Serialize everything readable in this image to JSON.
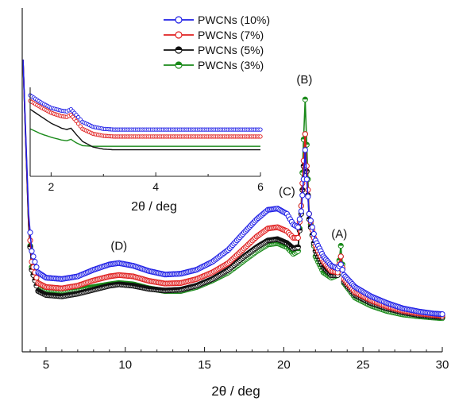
{
  "chart_data": {
    "type": "line",
    "title": "",
    "xlabel": "2θ / deg",
    "ylabel": "",
    "xlim": [
      3.5,
      30
    ],
    "ylim": [
      0,
      100
    ],
    "x_ticks": [
      5,
      10,
      15,
      20,
      25,
      30
    ],
    "y_ticks": [],
    "grid": false,
    "legend_position": "top-center",
    "series": [
      {
        "name": "PWCNs (10%)",
        "color": "#1f1fe6",
        "marker": "open-circle",
        "points": [
          [
            3.55,
            100
          ],
          [
            3.7,
            75
          ],
          [
            3.9,
            42
          ],
          [
            4.1,
            28
          ],
          [
            4.5,
            20
          ],
          [
            5,
            18
          ],
          [
            6,
            17.5
          ],
          [
            7,
            18.5
          ],
          [
            8,
            21
          ],
          [
            9,
            23
          ],
          [
            9.6,
            23.5
          ],
          [
            10.5,
            22.5
          ],
          [
            11.5,
            20.5
          ],
          [
            12.5,
            19.2
          ],
          [
            13.5,
            19.5
          ],
          [
            14.5,
            21
          ],
          [
            15.5,
            24
          ],
          [
            16.5,
            28.5
          ],
          [
            17.5,
            35
          ],
          [
            18.3,
            40
          ],
          [
            19,
            43.5
          ],
          [
            19.6,
            44
          ],
          [
            20.2,
            42
          ],
          [
            20.6,
            38
          ],
          [
            20.9,
            37
          ],
          [
            21.1,
            43
          ],
          [
            21.25,
            55
          ],
          [
            21.35,
            66
          ],
          [
            21.45,
            55
          ],
          [
            21.6,
            42
          ],
          [
            22,
            32
          ],
          [
            22.5,
            26
          ],
          [
            23,
            22.5
          ],
          [
            23.4,
            21.5
          ],
          [
            23.6,
            23
          ],
          [
            23.8,
            19
          ],
          [
            24.5,
            14.5
          ],
          [
            25.5,
            11
          ],
          [
            26.5,
            8.5
          ],
          [
            27.5,
            6.5
          ],
          [
            28.5,
            5.3
          ],
          [
            29.5,
            4.5
          ],
          [
            30,
            4.3
          ]
        ]
      },
      {
        "name": "PWCNs (7%)",
        "color": "#e02020",
        "marker": "open-circle",
        "points": [
          [
            3.55,
            100
          ],
          [
            3.7,
            74
          ],
          [
            3.9,
            40
          ],
          [
            4.1,
            24
          ],
          [
            4.5,
            16
          ],
          [
            5,
            14.5
          ],
          [
            6,
            14
          ],
          [
            7,
            15
          ],
          [
            8,
            17
          ],
          [
            9,
            18.5
          ],
          [
            9.6,
            19
          ],
          [
            10.5,
            18.5
          ],
          [
            11.5,
            16.8
          ],
          [
            12.5,
            15.8
          ],
          [
            13.5,
            16
          ],
          [
            14.5,
            17.5
          ],
          [
            15.5,
            20
          ],
          [
            16.5,
            23.5
          ],
          [
            17.5,
            29
          ],
          [
            18.3,
            33.5
          ],
          [
            19,
            36.5
          ],
          [
            19.6,
            37
          ],
          [
            20.2,
            35.5
          ],
          [
            20.6,
            33
          ],
          [
            20.9,
            33
          ],
          [
            21.1,
            45
          ],
          [
            21.25,
            62
          ],
          [
            21.35,
            72
          ],
          [
            21.45,
            60
          ],
          [
            21.6,
            42
          ],
          [
            22,
            30
          ],
          [
            22.5,
            24
          ],
          [
            23,
            20.5
          ],
          [
            23.4,
            20
          ],
          [
            23.6,
            26
          ],
          [
            23.8,
            17.5
          ],
          [
            24.5,
            12.5
          ],
          [
            25.5,
            9.5
          ],
          [
            26.5,
            7.2
          ],
          [
            27.5,
            5.6
          ],
          [
            28.5,
            4.6
          ],
          [
            29.5,
            4
          ],
          [
            30,
            3.8
          ]
        ]
      },
      {
        "name": "PWCNs (5%)",
        "color": "#111111",
        "marker": "half-filled-circle",
        "points": [
          [
            3.55,
            100
          ],
          [
            3.7,
            73
          ],
          [
            3.9,
            38
          ],
          [
            4.1,
            21
          ],
          [
            4.5,
            13
          ],
          [
            5,
            11.5
          ],
          [
            6,
            11
          ],
          [
            7,
            12
          ],
          [
            8,
            13.5
          ],
          [
            9,
            15
          ],
          [
            9.6,
            15.5
          ],
          [
            10.5,
            15
          ],
          [
            11.5,
            13.8
          ],
          [
            12.5,
            13.2
          ],
          [
            13.5,
            13.5
          ],
          [
            14.5,
            15
          ],
          [
            15.5,
            17.5
          ],
          [
            16.5,
            21
          ],
          [
            17.5,
            26
          ],
          [
            18.3,
            29.5
          ],
          [
            19,
            32
          ],
          [
            19.6,
            32.5
          ],
          [
            20.2,
            31
          ],
          [
            20.6,
            29
          ],
          [
            20.9,
            29.5
          ],
          [
            21.1,
            42
          ],
          [
            21.25,
            60
          ],
          [
            21.35,
            72
          ],
          [
            21.45,
            58
          ],
          [
            21.6,
            40
          ],
          [
            22,
            28
          ],
          [
            22.5,
            22
          ],
          [
            23,
            19
          ],
          [
            23.4,
            19
          ],
          [
            23.6,
            26
          ],
          [
            23.8,
            16.5
          ],
          [
            24.5,
            11.5
          ],
          [
            25.5,
            8.5
          ],
          [
            26.5,
            6.5
          ],
          [
            27.5,
            5
          ],
          [
            28.5,
            4
          ],
          [
            29.5,
            3.4
          ],
          [
            30,
            3.2
          ]
        ]
      },
      {
        "name": "PWCNs (3%)",
        "color": "#1a8a1a",
        "marker": "half-filled-circle",
        "points": [
          [
            3.55,
            100
          ],
          [
            3.7,
            73
          ],
          [
            3.9,
            38
          ],
          [
            4.1,
            22
          ],
          [
            4.5,
            15
          ],
          [
            5,
            13.5
          ],
          [
            6,
            13
          ],
          [
            7,
            13.5
          ],
          [
            8,
            14.5
          ],
          [
            9,
            15.5
          ],
          [
            9.6,
            16
          ],
          [
            10.5,
            15.5
          ],
          [
            11.5,
            14
          ],
          [
            12.5,
            13
          ],
          [
            13.5,
            13
          ],
          [
            14.5,
            14.5
          ],
          [
            15.5,
            17
          ],
          [
            16.5,
            20
          ],
          [
            17.5,
            24.5
          ],
          [
            18.3,
            28
          ],
          [
            19,
            30.5
          ],
          [
            19.6,
            31
          ],
          [
            20.2,
            29.5
          ],
          [
            20.6,
            27
          ],
          [
            20.9,
            28
          ],
          [
            21.1,
            45
          ],
          [
            21.25,
            70
          ],
          [
            21.35,
            85
          ],
          [
            21.45,
            68
          ],
          [
            21.6,
            42
          ],
          [
            22,
            26
          ],
          [
            22.5,
            20
          ],
          [
            23,
            18
          ],
          [
            23.4,
            19
          ],
          [
            23.6,
            30
          ],
          [
            23.8,
            16
          ],
          [
            24.5,
            10.5
          ],
          [
            25.5,
            7.5
          ],
          [
            26.5,
            5.5
          ],
          [
            27.5,
            4.2
          ],
          [
            28.5,
            3.5
          ],
          [
            29.5,
            3
          ],
          [
            30,
            2.8
          ]
        ]
      }
    ],
    "annotations": [
      {
        "text": "(A)",
        "x": 23.5,
        "y": 33
      },
      {
        "text": "(B)",
        "x": 21.3,
        "y": 91
      },
      {
        "text": "(C)",
        "x": 20.2,
        "y": 49
      },
      {
        "text": "(D)",
        "x": 9.6,
        "y": 28.5
      }
    ],
    "inset": {
      "xlabel": "2θ / deg",
      "xlim": [
        1.6,
        6
      ],
      "x_ticks": [
        2,
        4,
        6
      ],
      "series": [
        {
          "name": "PWCNs (10%)",
          "color": "#1f1fe6",
          "points": [
            [
              1.6,
              100
            ],
            [
              1.8,
              90
            ],
            [
              2.0,
              82
            ],
            [
              2.2,
              78
            ],
            [
              2.3,
              77
            ],
            [
              2.38,
              80
            ],
            [
              2.48,
              72
            ],
            [
              2.6,
              62
            ],
            [
              2.8,
              55
            ],
            [
              3.0,
              52
            ],
            [
              3.2,
              51
            ],
            [
              3.5,
              51
            ],
            [
              4,
              51
            ],
            [
              5,
              51
            ],
            [
              6,
              51
            ]
          ]
        },
        {
          "name": "PWCNs (7%)",
          "color": "#e02020",
          "points": [
            [
              1.6,
              92
            ],
            [
              1.8,
              83
            ],
            [
              2.0,
              75
            ],
            [
              2.2,
              70
            ],
            [
              2.3,
              69
            ],
            [
              2.38,
              72
            ],
            [
              2.48,
              63
            ],
            [
              2.6,
              52
            ],
            [
              2.8,
              45
            ],
            [
              3.0,
              42
            ],
            [
              3.2,
              41
            ],
            [
              3.5,
              41
            ],
            [
              4,
              41
            ],
            [
              5,
              41
            ],
            [
              6,
              41
            ]
          ]
        },
        {
          "name": "PWCNs (5%)",
          "color": "#111111",
          "points": [
            [
              1.6,
              80
            ],
            [
              1.8,
              70
            ],
            [
              2.0,
              60
            ],
            [
              2.2,
              53
            ],
            [
              2.3,
              51
            ],
            [
              2.38,
              53
            ],
            [
              2.48,
              44
            ],
            [
              2.6,
              34
            ],
            [
              2.8,
              26
            ],
            [
              3.0,
              23
            ],
            [
              3.2,
              22
            ],
            [
              3.5,
              22
            ],
            [
              4,
              22
            ],
            [
              5,
              22
            ],
            [
              6,
              22
            ]
          ]
        },
        {
          "name": "PWCNs (3%)",
          "color": "#1a8a1a",
          "points": [
            [
              1.6,
              52
            ],
            [
              1.8,
              45
            ],
            [
              2.0,
              40
            ],
            [
              2.2,
              36
            ],
            [
              2.3,
              35
            ],
            [
              2.38,
              37
            ],
            [
              2.48,
              32
            ],
            [
              2.6,
              28
            ],
            [
              2.8,
              27
            ],
            [
              3.0,
              27
            ],
            [
              3.5,
              27
            ],
            [
              4,
              27
            ],
            [
              5,
              27
            ],
            [
              6,
              27
            ]
          ]
        }
      ]
    }
  }
}
